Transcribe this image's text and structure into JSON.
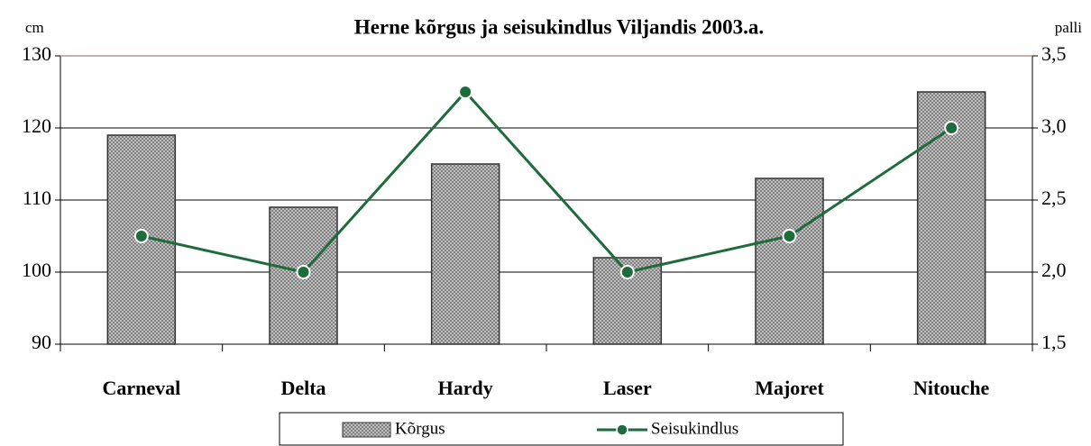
{
  "chart_data": {
    "type": "bar",
    "title": "Herne kõrgus ja seisukindlus Viljandis 2003.a.",
    "y_label": "cm",
    "y2_label": "palli",
    "categories": [
      "Carneval",
      "Delta",
      "Hardy",
      "Laser",
      "Majoret",
      "Nitouche"
    ],
    "series": [
      {
        "name": "Kõrgus",
        "type": "bar",
        "color": "#7a7a7a",
        "values": [
          119,
          109,
          115,
          102,
          113,
          125
        ]
      },
      {
        "name": "Seisukindlus",
        "type": "line",
        "axis": "y2",
        "color": "#1e6b3c",
        "values": [
          2.25,
          2.0,
          3.25,
          2.0,
          2.25,
          3.0
        ]
      }
    ],
    "ylim": [
      90,
      130
    ],
    "yticks": [
      90,
      100,
      110,
      120,
      130
    ],
    "y2lim": [
      1.5,
      3.5
    ],
    "y2ticks": [
      {
        "value": 1.5,
        "label": "1,5"
      },
      {
        "value": 2.0,
        "label": "2,0"
      },
      {
        "value": 2.5,
        "label": "2,5"
      },
      {
        "value": 3.0,
        "label": "3,0"
      },
      {
        "value": 3.5,
        "label": "3,5"
      }
    ],
    "grid": true,
    "legend": "bottom"
  }
}
